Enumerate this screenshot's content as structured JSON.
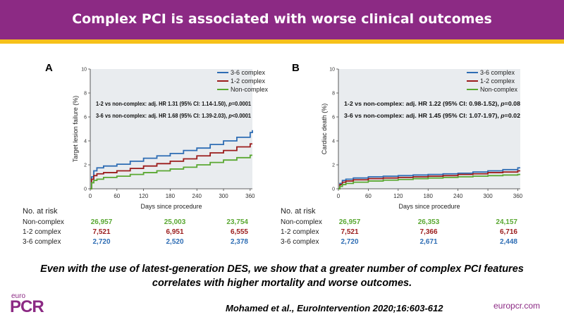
{
  "header": {
    "title": "Complex PCI is associated with worse clinical outcomes"
  },
  "summary": "Even with the use of latest-generation DES, we show that a greater number of complex PCI features correlates with higher mortality and worse outcomes.",
  "citation": "Mohamed et al., EuroIntervention 2020;16:603-612",
  "logo": {
    "small": "euro",
    "big": "PCR"
  },
  "website": "europcr.com",
  "colors": {
    "banner": "#8c2a84",
    "stripe": "#f6c11a",
    "complex_3_6": "#2e6db4",
    "complex_1_2": "#9b1c1c",
    "non_complex": "#5aa832"
  },
  "chart_data": [
    {
      "panel": "A",
      "type": "line",
      "xlabel": "Days since procedure",
      "ylabel": "Target lesion failure (%)",
      "xlim": [
        0,
        365
      ],
      "ylim": [
        0,
        10
      ],
      "xticks": [
        "0",
        "60",
        "120",
        "180",
        "240",
        "300",
        "360"
      ],
      "yticks": [
        "0",
        "2",
        "4",
        "6",
        "8",
        "10"
      ],
      "legend_position": "top-right",
      "annotations": [
        {
          "text_before": "1-2 vs non-complex: adj. HR 1.31 (95% CI: 1.14-1.50), ",
          "p_label": "p",
          "text_after": "=0.0001"
        },
        {
          "text_before": "3-6 vs non-complex: adj. HR 1.68 (95% CI: 1.39-2.03), ",
          "p_label": "p",
          "text_after": "<0.0001"
        }
      ],
      "series": [
        {
          "name": "3-6 complex",
          "color": "#2e6db4",
          "x": [
            0,
            3,
            8,
            15,
            30,
            60,
            90,
            120,
            150,
            180,
            210,
            240,
            270,
            300,
            330,
            360,
            365
          ],
          "y": [
            0,
            1.0,
            1.5,
            1.75,
            1.9,
            2.05,
            2.3,
            2.55,
            2.75,
            2.95,
            3.2,
            3.4,
            3.7,
            4.0,
            4.3,
            4.7,
            4.9
          ]
        },
        {
          "name": "1-2 complex",
          "color": "#9b1c1c",
          "x": [
            0,
            3,
            8,
            15,
            30,
            60,
            90,
            120,
            150,
            180,
            210,
            240,
            270,
            300,
            330,
            360,
            365
          ],
          "y": [
            0,
            0.8,
            1.1,
            1.25,
            1.35,
            1.5,
            1.7,
            1.9,
            2.1,
            2.3,
            2.5,
            2.75,
            3.0,
            3.2,
            3.5,
            3.75,
            3.75
          ]
        },
        {
          "name": "Non-complex",
          "color": "#5aa832",
          "x": [
            0,
            3,
            8,
            15,
            30,
            60,
            90,
            120,
            150,
            180,
            210,
            240,
            270,
            300,
            330,
            360,
            365
          ],
          "y": [
            0,
            0.5,
            0.7,
            0.8,
            0.95,
            1.05,
            1.2,
            1.35,
            1.5,
            1.65,
            1.8,
            2.0,
            2.2,
            2.4,
            2.6,
            2.8,
            2.8
          ]
        }
      ],
      "risk_table": {
        "header": "No. at risk",
        "rows": [
          {
            "label": "Non-complex",
            "color": "#5aa832",
            "values": [
              "26,957",
              "25,003",
              "23,754"
            ]
          },
          {
            "label": "1-2 complex",
            "color": "#9b1c1c",
            "values": [
              "7,521",
              "6,951",
              "6,555"
            ]
          },
          {
            "label": "3-6 complex",
            "color": "#2e6db4",
            "values": [
              "2,720",
              "2,520",
              "2,378"
            ]
          }
        ]
      }
    },
    {
      "panel": "B",
      "type": "line",
      "xlabel": "Days since procedure",
      "ylabel": "Cardiac death (%)",
      "xlim": [
        0,
        365
      ],
      "ylim": [
        0,
        10
      ],
      "xticks": [
        "0",
        "60",
        "120",
        "180",
        "240",
        "300",
        "360"
      ],
      "yticks": [
        "0",
        "2",
        "4",
        "6",
        "8",
        "10"
      ],
      "legend_position": "top-right",
      "annotations": [
        {
          "text_before": "1-2 vs non-complex: adj. HR 1.22 (95% CI: 0.98-1.52), ",
          "p_label": "p",
          "text_after": "=0.08"
        },
        {
          "text_before": "3-6 vs non-complex: adj. HR 1.45 (95% CI: 1.07-1.97), ",
          "p_label": "p",
          "text_after": "=0.02"
        }
      ],
      "series": [
        {
          "name": "3-6 complex",
          "color": "#2e6db4",
          "x": [
            0,
            3,
            8,
            15,
            30,
            60,
            90,
            120,
            150,
            180,
            210,
            240,
            270,
            300,
            330,
            360,
            365
          ],
          "y": [
            0,
            0.45,
            0.7,
            0.8,
            0.9,
            1.0,
            1.05,
            1.1,
            1.15,
            1.2,
            1.25,
            1.3,
            1.4,
            1.5,
            1.6,
            1.75,
            1.75
          ]
        },
        {
          "name": "1-2 complex",
          "color": "#9b1c1c",
          "x": [
            0,
            3,
            8,
            15,
            30,
            60,
            90,
            120,
            150,
            180,
            210,
            240,
            270,
            300,
            330,
            360,
            365
          ],
          "y": [
            0,
            0.35,
            0.55,
            0.65,
            0.75,
            0.85,
            0.9,
            0.95,
            1.0,
            1.05,
            1.1,
            1.2,
            1.25,
            1.35,
            1.4,
            1.5,
            1.5
          ]
        },
        {
          "name": "Non-complex",
          "color": "#5aa832",
          "x": [
            0,
            3,
            8,
            15,
            30,
            60,
            90,
            120,
            150,
            180,
            210,
            240,
            270,
            300,
            330,
            360,
            365
          ],
          "y": [
            0,
            0.2,
            0.35,
            0.45,
            0.55,
            0.65,
            0.72,
            0.78,
            0.85,
            0.9,
            0.95,
            1.0,
            1.05,
            1.1,
            1.15,
            1.2,
            1.2
          ]
        }
      ],
      "risk_table": {
        "header": "No. at risk",
        "rows": [
          {
            "label": "Non-complex",
            "color": "#5aa832",
            "values": [
              "26,957",
              "26,353",
              "24,157"
            ]
          },
          {
            "label": "1-2 complex",
            "color": "#9b1c1c",
            "values": [
              "7,521",
              "7,366",
              "6,716"
            ]
          },
          {
            "label": "3-6 complex",
            "color": "#2e6db4",
            "values": [
              "2,720",
              "2,671",
              "2,448"
            ]
          }
        ]
      }
    }
  ]
}
